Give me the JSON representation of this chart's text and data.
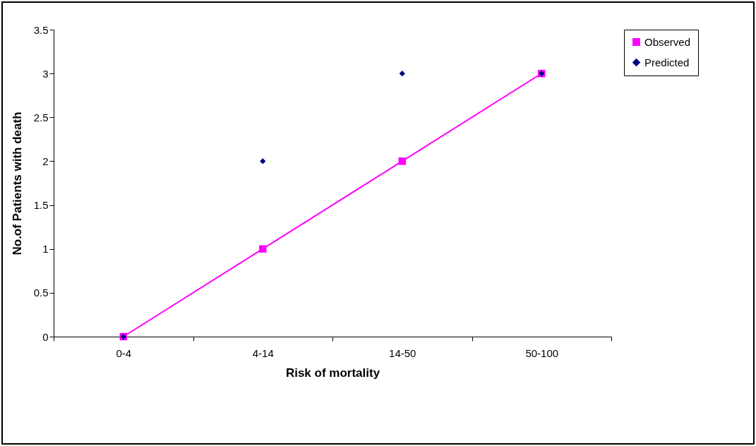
{
  "chart_data": {
    "type": "line",
    "xlabel": "Risk of mortality",
    "ylabel": "No.of Patients  with death",
    "categories": [
      "0-4",
      "4-14",
      "14-50",
      "50-100"
    ],
    "series": [
      {
        "name": "Observed",
        "color": "#ff00ff",
        "marker": "square",
        "values": [
          0,
          1,
          2,
          3
        ]
      },
      {
        "name": "Predicted",
        "color": "#000080",
        "type": "scatter",
        "marker": "diamond",
        "values": [
          0,
          2,
          3,
          3
        ]
      }
    ],
    "ylim": [
      0,
      3.5
    ],
    "yticks": [
      0,
      0.5,
      1,
      1.5,
      2,
      2.5,
      3,
      3.5
    ],
    "grid": false,
    "legend": "right"
  }
}
